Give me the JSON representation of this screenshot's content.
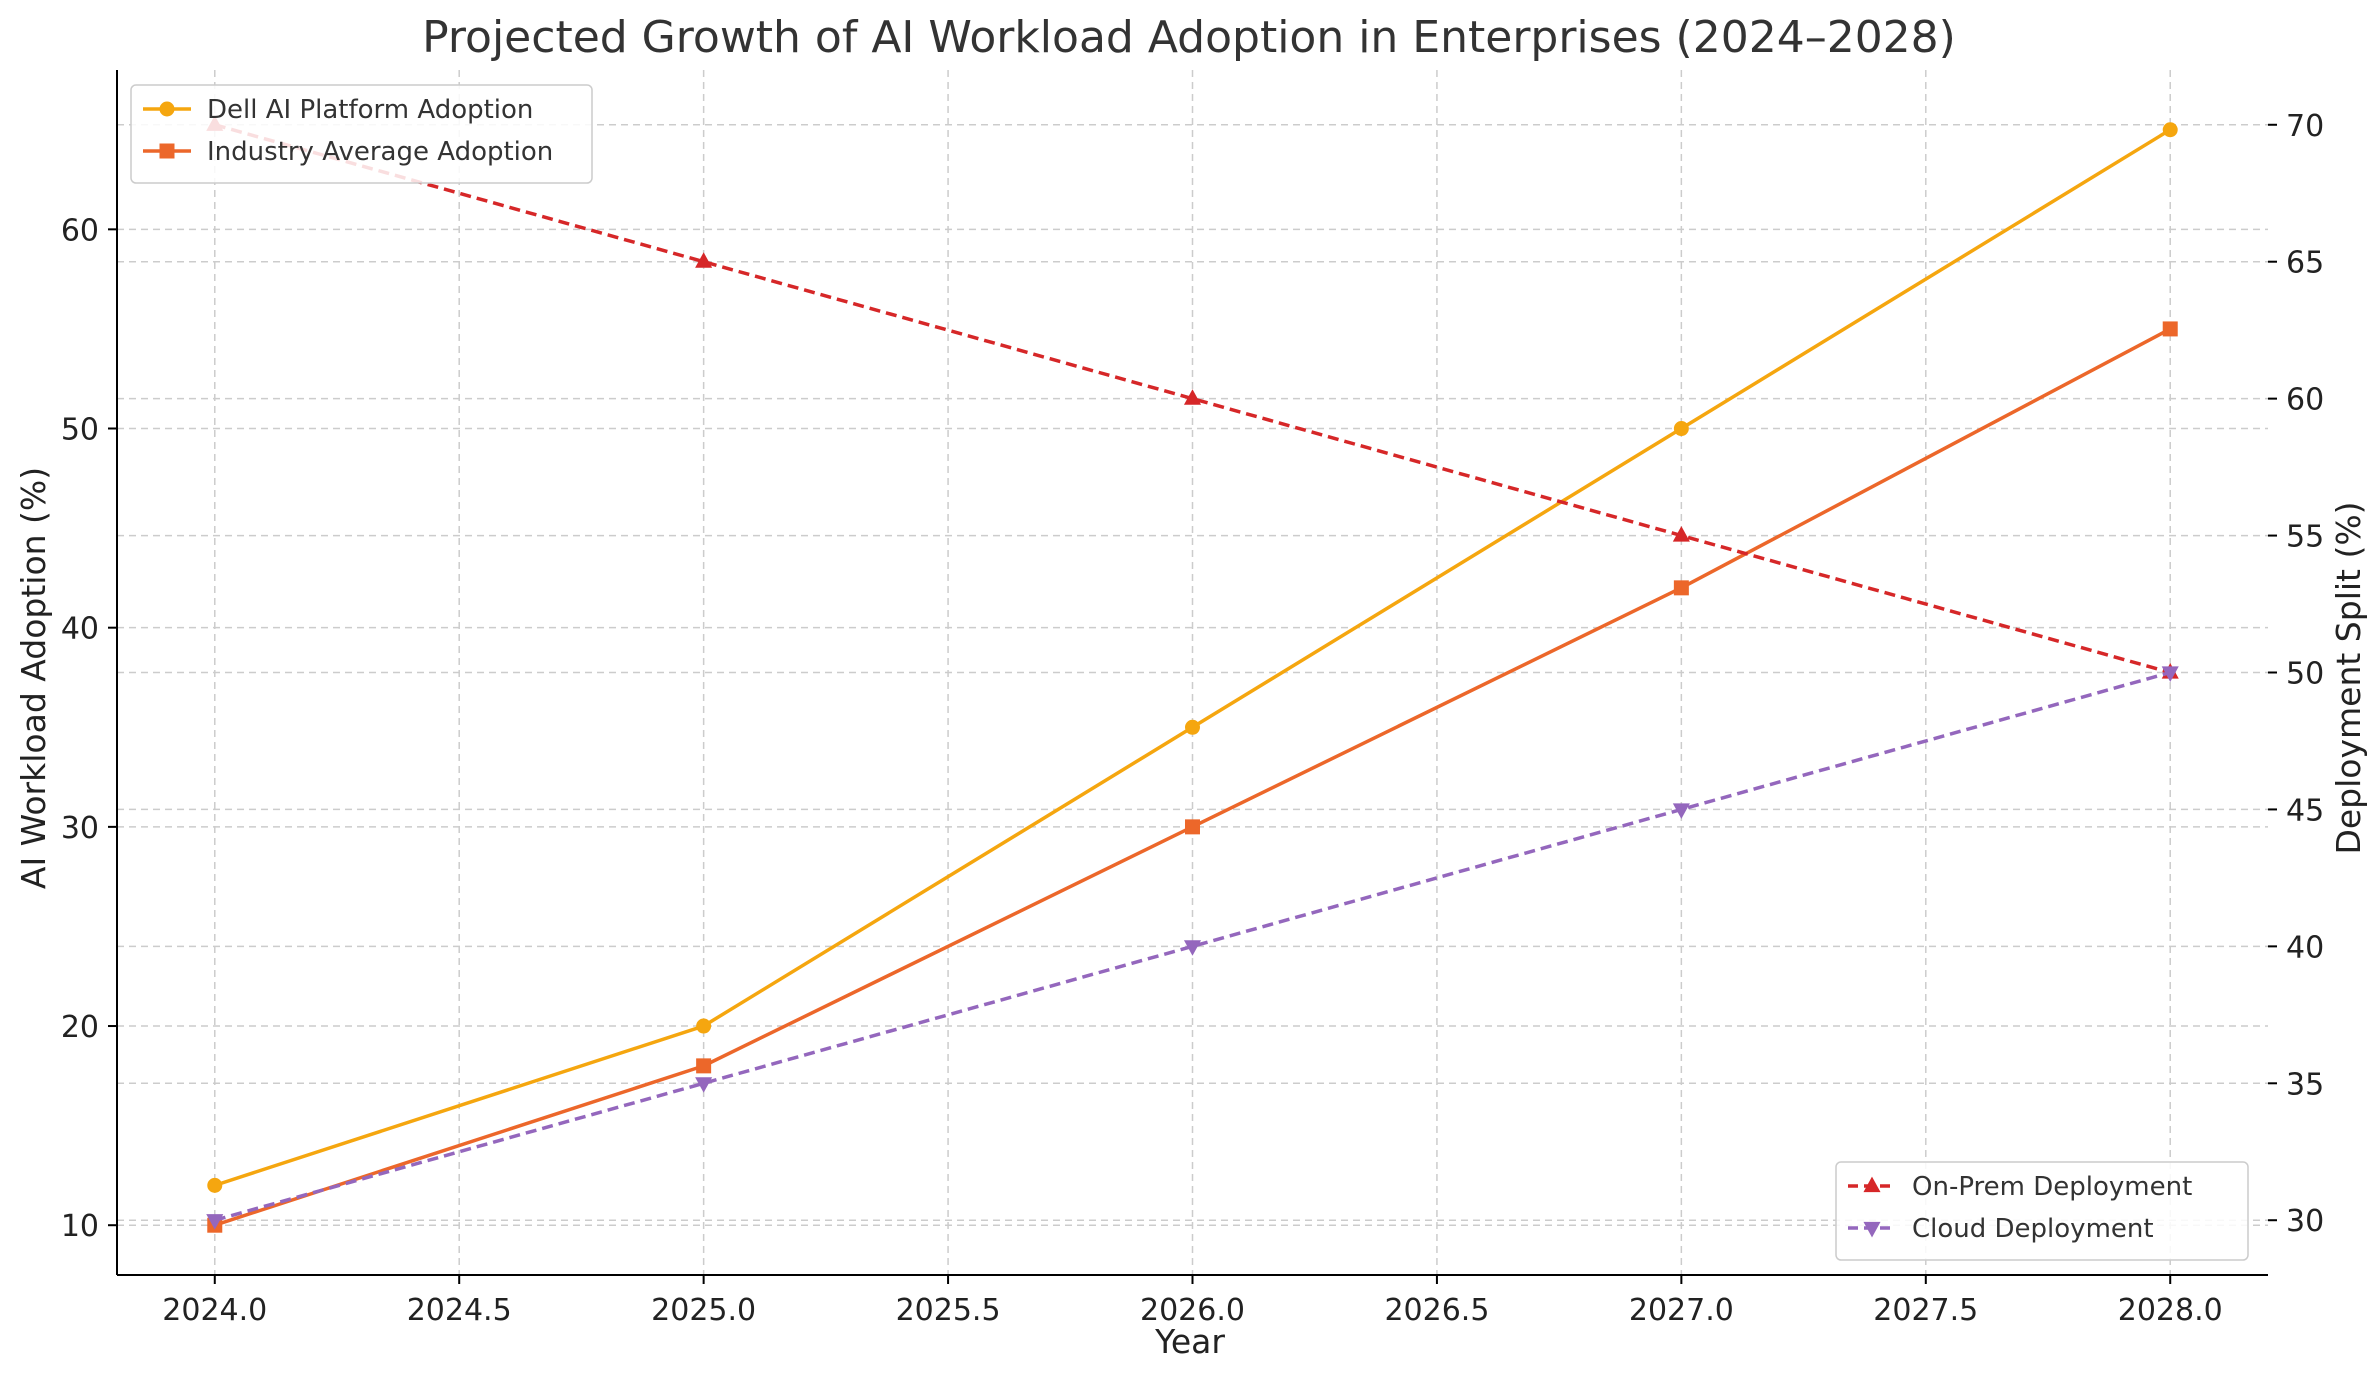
{
  "chart_data": {
    "type": "line",
    "title": "Projected Growth of AI Workload Adoption in Enterprises (2024–2028)",
    "xlabel": "Year",
    "ylabel": "AI Workload Adoption (%)",
    "y2label": "Deployment Split (%)",
    "x": [
      2024,
      2025,
      2026,
      2027,
      2028
    ],
    "xlim": [
      2023.8,
      2028.2
    ],
    "ylim": [
      7.5,
      68
    ],
    "y2lim": [
      28,
      72
    ],
    "x_ticks": [
      "2024.0",
      "2024.5",
      "2025.0",
      "2025.5",
      "2026.0",
      "2026.5",
      "2027.0",
      "2027.5",
      "2028.0"
    ],
    "x_tick_values": [
      2024,
      2024.5,
      2025,
      2025.5,
      2026,
      2026.5,
      2027,
      2027.5,
      2028
    ],
    "y_ticks": [
      "10",
      "20",
      "30",
      "40",
      "50",
      "60"
    ],
    "y_tick_values": [
      10,
      20,
      30,
      40,
      50,
      60
    ],
    "y2_ticks": [
      "30",
      "35",
      "40",
      "45",
      "50",
      "55",
      "60",
      "65",
      "70"
    ],
    "y2_tick_values": [
      30,
      35,
      40,
      45,
      50,
      55,
      60,
      65,
      70
    ],
    "grid": true,
    "series": [
      {
        "name": "Dell AI Platform Adoption",
        "axis": "left",
        "values": [
          12,
          20,
          35,
          50,
          65
        ],
        "color": "#f5a60f",
        "marker": "circle",
        "dash": false
      },
      {
        "name": "Industry Average Adoption",
        "axis": "left",
        "values": [
          10,
          18,
          30,
          42,
          55
        ],
        "color": "#ec672a",
        "marker": "square",
        "dash": false
      },
      {
        "name": "On-Prem Deployment",
        "axis": "right",
        "values": [
          70,
          65,
          60,
          55,
          50
        ],
        "color": "#d62728",
        "marker": "triangle-up",
        "dash": true
      },
      {
        "name": "Cloud Deployment",
        "axis": "right",
        "values": [
          30,
          35,
          40,
          45,
          50
        ],
        "color": "#9467bd",
        "marker": "triangle-down",
        "dash": true
      }
    ],
    "legends": [
      {
        "placement": "top-left",
        "series": [
          0,
          1
        ]
      },
      {
        "placement": "bottom-right",
        "series": [
          2,
          3
        ]
      }
    ]
  }
}
